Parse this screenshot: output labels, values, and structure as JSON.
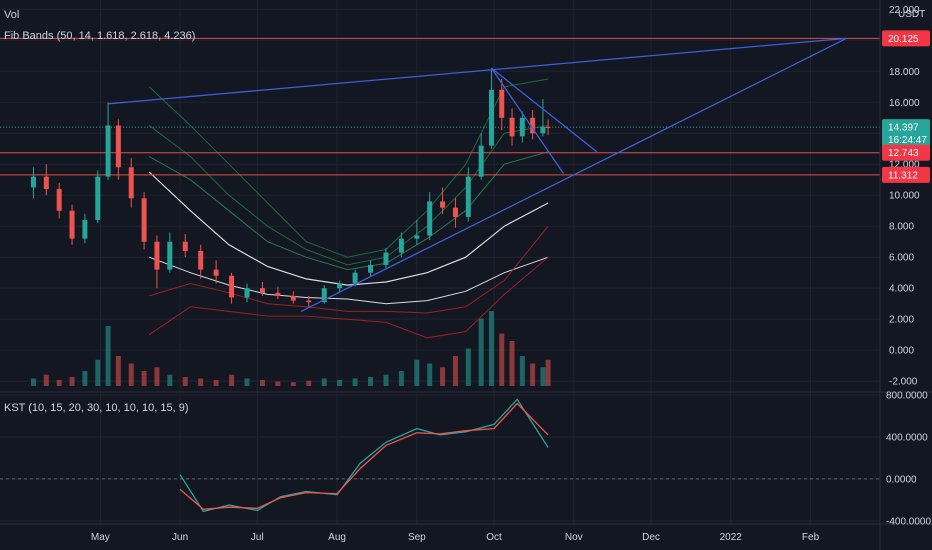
{
  "colors": {
    "background": "#131722",
    "grid": "#1f2431",
    "up": "#26a69a",
    "down": "#ef5350",
    "text": "#d1d4dc",
    "trendline": "#3f5fd8",
    "red_line": "#e0504a",
    "price_tag": "#26a69a",
    "red_tag": "#f23645",
    "kst_line": "#26a69a",
    "kst_signal": "#ef5350",
    "fib_outer_green": "#1e7a3e",
    "fib_mid": "#ffffff",
    "fib_red": "#b22222"
  },
  "legend": {
    "vol": "Vol",
    "fib": "Fib Bands (50, 14, 1.618, 2.618, 4.236)",
    "kst": "KST (10, 15, 20, 30, 10, 10, 10, 15, 9)"
  },
  "price_axis": {
    "currency": "USDT",
    "ticks": [
      "22.000",
      "20.000",
      "18.000",
      "16.000",
      "14.000",
      "12.000",
      "10.000",
      "8.000",
      "6.000",
      "4.000",
      "2.000",
      "0.000",
      "-2.000"
    ],
    "tags": [
      {
        "value": 20.125,
        "text": "20.125",
        "type": "red"
      },
      {
        "value": 14.397,
        "text": "14.397",
        "type": "price",
        "countdown": "16:24:47"
      },
      {
        "value": 12.743,
        "text": "12.743",
        "type": "red"
      },
      {
        "value": 11.312,
        "text": "11.312",
        "type": "red"
      }
    ]
  },
  "kst_axis": {
    "ticks": [
      "800.0000",
      "400.0000",
      "0.0000",
      "-400.0000"
    ]
  },
  "time_axis": {
    "labels": [
      "May",
      "Jun",
      "Jul",
      "Aug",
      "Sep",
      "Oct",
      "Nov",
      "Dec",
      "2022",
      "Feb"
    ]
  },
  "chart_data": [
    {
      "type": "candlestick",
      "title": "",
      "y_unit": "USDT",
      "ylim": [
        -2.7,
        22.6
      ],
      "x_range": [
        "2021-03-23",
        "2022-02-28"
      ],
      "grid": true,
      "horizontal_levels": [
        20.125,
        12.743,
        11.312
      ],
      "current_price": 14.397,
      "candles_approx": [
        {
          "t": "2021-04-05",
          "o": 10.5,
          "h": 11.8,
          "l": 9.8,
          "c": 11.2
        },
        {
          "t": "2021-04-10",
          "o": 11.2,
          "h": 12.0,
          "l": 10.0,
          "c": 10.4
        },
        {
          "t": "2021-04-15",
          "o": 10.4,
          "h": 10.8,
          "l": 8.5,
          "c": 9.0
        },
        {
          "t": "2021-04-20",
          "o": 9.0,
          "h": 9.4,
          "l": 6.8,
          "c": 7.2
        },
        {
          "t": "2021-04-25",
          "o": 7.2,
          "h": 8.8,
          "l": 6.9,
          "c": 8.4
        },
        {
          "t": "2021-04-30",
          "o": 8.4,
          "h": 11.6,
          "l": 8.2,
          "c": 11.2
        },
        {
          "t": "2021-05-04",
          "o": 11.2,
          "h": 16.0,
          "l": 11.0,
          "c": 14.5
        },
        {
          "t": "2021-05-08",
          "o": 14.5,
          "h": 14.9,
          "l": 11.0,
          "c": 11.8
        },
        {
          "t": "2021-05-13",
          "o": 11.8,
          "h": 12.4,
          "l": 9.2,
          "c": 9.8
        },
        {
          "t": "2021-05-18",
          "o": 9.8,
          "h": 10.2,
          "l": 6.5,
          "c": 7.0
        },
        {
          "t": "2021-05-23",
          "o": 7.0,
          "h": 7.4,
          "l": 4.0,
          "c": 5.2
        },
        {
          "t": "2021-05-28",
          "o": 5.2,
          "h": 7.6,
          "l": 5.0,
          "c": 7.0
        },
        {
          "t": "2021-06-03",
          "o": 7.0,
          "h": 7.5,
          "l": 6.0,
          "c": 6.4
        },
        {
          "t": "2021-06-09",
          "o": 6.4,
          "h": 6.8,
          "l": 4.6,
          "c": 5.2
        },
        {
          "t": "2021-06-15",
          "o": 5.2,
          "h": 5.8,
          "l": 4.3,
          "c": 4.8
        },
        {
          "t": "2021-06-21",
          "o": 4.8,
          "h": 5.0,
          "l": 3.0,
          "c": 3.4
        },
        {
          "t": "2021-06-27",
          "o": 3.4,
          "h": 4.3,
          "l": 3.1,
          "c": 4.0
        },
        {
          "t": "2021-07-03",
          "o": 4.0,
          "h": 4.4,
          "l": 3.5,
          "c": 3.7
        },
        {
          "t": "2021-07-09",
          "o": 3.7,
          "h": 4.1,
          "l": 3.3,
          "c": 3.5
        },
        {
          "t": "2021-07-15",
          "o": 3.5,
          "h": 3.8,
          "l": 3.0,
          "c": 3.2
        },
        {
          "t": "2021-07-21",
          "o": 3.2,
          "h": 3.5,
          "l": 2.8,
          "c": 3.1
        },
        {
          "t": "2021-07-27",
          "o": 3.1,
          "h": 4.2,
          "l": 3.0,
          "c": 4.0
        },
        {
          "t": "2021-08-02",
          "o": 4.0,
          "h": 4.5,
          "l": 3.7,
          "c": 4.3
        },
        {
          "t": "2021-08-08",
          "o": 4.3,
          "h": 5.2,
          "l": 4.1,
          "c": 5.0
        },
        {
          "t": "2021-08-14",
          "o": 5.0,
          "h": 5.8,
          "l": 4.8,
          "c": 5.5
        },
        {
          "t": "2021-08-20",
          "o": 5.5,
          "h": 6.6,
          "l": 5.3,
          "c": 6.3
        },
        {
          "t": "2021-08-26",
          "o": 6.3,
          "h": 7.6,
          "l": 6.0,
          "c": 7.2
        },
        {
          "t": "2021-09-01",
          "o": 7.2,
          "h": 8.4,
          "l": 6.8,
          "c": 7.4
        },
        {
          "t": "2021-09-06",
          "o": 7.4,
          "h": 10.2,
          "l": 7.1,
          "c": 9.6
        },
        {
          "t": "2021-09-11",
          "o": 9.6,
          "h": 10.5,
          "l": 8.8,
          "c": 9.2
        },
        {
          "t": "2021-09-16",
          "o": 9.2,
          "h": 9.8,
          "l": 7.9,
          "c": 8.6
        },
        {
          "t": "2021-09-21",
          "o": 8.6,
          "h": 11.8,
          "l": 8.3,
          "c": 11.2
        },
        {
          "t": "2021-09-26",
          "o": 11.2,
          "h": 14.0,
          "l": 11.0,
          "c": 13.2
        },
        {
          "t": "2021-09-30",
          "o": 13.2,
          "h": 18.2,
          "l": 13.0,
          "c": 16.8
        },
        {
          "t": "2021-10-04",
          "o": 16.8,
          "h": 17.5,
          "l": 14.2,
          "c": 15.0
        },
        {
          "t": "2021-10-08",
          "o": 15.0,
          "h": 15.6,
          "l": 13.2,
          "c": 13.8
        },
        {
          "t": "2021-10-12",
          "o": 13.8,
          "h": 15.4,
          "l": 13.4,
          "c": 15.0
        },
        {
          "t": "2021-10-16",
          "o": 15.0,
          "h": 15.5,
          "l": 13.6,
          "c": 14.0
        },
        {
          "t": "2021-10-20",
          "o": 14.0,
          "h": 16.2,
          "l": 13.8,
          "c": 14.4
        },
        {
          "t": "2021-10-22",
          "o": 14.4,
          "h": 14.9,
          "l": 13.9,
          "c": 14.397
        }
      ],
      "fib_bands_approx": {
        "dates": [
          "2021-05-20",
          "2021-06-05",
          "2021-06-20",
          "2021-07-05",
          "2021-07-20",
          "2021-08-05",
          "2021-08-20",
          "2021-09-05",
          "2021-09-20",
          "2021-10-05",
          "2021-10-22"
        ],
        "upper_4236": [
          17.0,
          14.5,
          12.0,
          9.5,
          7.0,
          6.0,
          6.5,
          9.0,
          12.0,
          17.0,
          17.5
        ],
        "upper_2618": [
          14.5,
          12.5,
          10.0,
          8.0,
          6.5,
          5.5,
          6.0,
          8.0,
          10.5,
          14.0,
          14.5
        ],
        "upper_1618": [
          12.5,
          11.0,
          9.0,
          7.0,
          6.0,
          5.2,
          5.6,
          7.2,
          9.0,
          12.0,
          12.8
        ],
        "basis": [
          11.5,
          9.0,
          6.8,
          5.4,
          4.6,
          4.2,
          4.4,
          5.0,
          6.0,
          8.0,
          9.5
        ],
        "lower_1618": [
          6.0,
          5.0,
          4.2,
          3.6,
          3.4,
          3.3,
          3.0,
          3.2,
          3.8,
          5.0,
          6.0
        ],
        "lower_2618": [
          3.5,
          4.3,
          3.7,
          3.0,
          2.8,
          2.5,
          2.5,
          2.4,
          2.8,
          4.5,
          8.0
        ],
        "lower_4236": [
          1.0,
          2.8,
          2.5,
          2.2,
          2.2,
          2.0,
          1.8,
          0.8,
          1.2,
          3.6,
          6.0
        ]
      },
      "drawings": [
        {
          "name": "upper-trendline",
          "points": [
            [
              "2021-05-04",
              15.9
            ],
            [
              "2022-02-15",
              20.125
            ]
          ]
        },
        {
          "name": "lower-trendline",
          "points": [
            [
              "2021-07-18",
              2.5
            ],
            [
              "2022-02-15",
              20.125
            ]
          ]
        },
        {
          "name": "wedge-top",
          "points": [
            [
              "2021-09-30",
              18.2
            ],
            [
              "2021-11-10",
              12.8
            ]
          ]
        },
        {
          "name": "wedge-bottom",
          "points": [
            [
              "2021-09-30",
              18.2
            ],
            [
              "2021-10-28",
              11.4
            ]
          ]
        }
      ]
    },
    {
      "type": "bar",
      "title": "Vol",
      "series": [
        {
          "values_relative": [
            0.1,
            0.15,
            0.08,
            0.12,
            0.2,
            0.35,
            0.8,
            0.4,
            0.3,
            0.2,
            0.25,
            0.15,
            0.12,
            0.1,
            0.08,
            0.15,
            0.1,
            0.08,
            0.06,
            0.05,
            0.07,
            0.1,
            0.08,
            0.1,
            0.12,
            0.15,
            0.2,
            0.35,
            0.3,
            0.25,
            0.4,
            0.5,
            0.9,
            1.0,
            0.7,
            0.6,
            0.4,
            0.3,
            0.25,
            0.35
          ]
        }
      ]
    },
    {
      "type": "line",
      "title": "KST (10, 15, 20, 30, 10, 10, 10, 15, 9)",
      "ylim": [
        -430,
        820
      ],
      "x": [
        "2021-06-01",
        "2021-06-10",
        "2021-06-20",
        "2021-07-01",
        "2021-07-10",
        "2021-07-20",
        "2021-08-01",
        "2021-08-10",
        "2021-08-20",
        "2021-09-01",
        "2021-09-10",
        "2021-09-20",
        "2021-10-01",
        "2021-10-10",
        "2021-10-22"
      ],
      "series": [
        {
          "name": "KST",
          "values": [
            40,
            -310,
            -250,
            -300,
            -170,
            -120,
            -150,
            150,
            350,
            480,
            420,
            450,
            520,
            760,
            300
          ]
        },
        {
          "name": "Signal",
          "values": [
            -100,
            -290,
            -270,
            -280,
            -180,
            -130,
            -140,
            100,
            320,
            440,
            430,
            460,
            480,
            720,
            420
          ]
        }
      ]
    }
  ]
}
